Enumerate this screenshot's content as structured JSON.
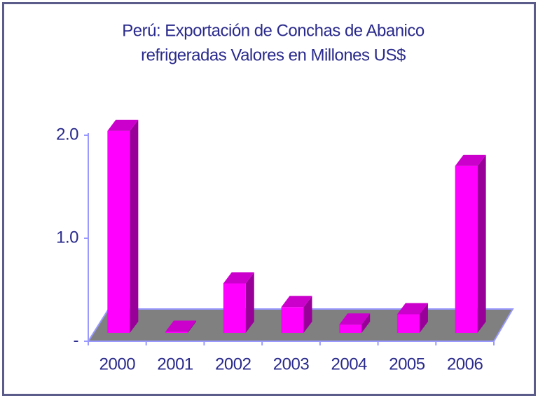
{
  "chart_data": {
    "type": "bar3d",
    "title": [
      "Perú: Exportación de Conchas de Abanico",
      "refrigeradas Valores en Millones US$"
    ],
    "categories": [
      "2000",
      "2001",
      "2002",
      "2003",
      "2004",
      "2005",
      "2006"
    ],
    "values": [
      1.96,
      0.01,
      0.48,
      0.25,
      0.08,
      0.18,
      1.62
    ],
    "color": "#ff00ff",
    "ylim": [
      0,
      2
    ],
    "yticks": [
      {
        "value": 0,
        "label": "-"
      },
      {
        "value": 1,
        "label": "1.0"
      },
      {
        "value": 2,
        "label": "2.0"
      }
    ]
  }
}
